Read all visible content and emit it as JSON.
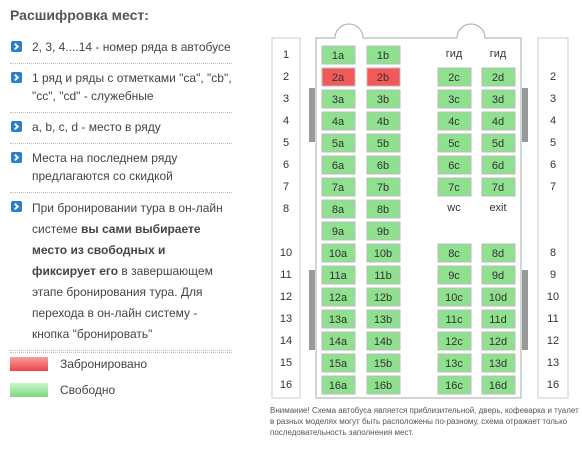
{
  "title": "Расшифровка мест:",
  "info_items": [
    [
      {
        "text": "2, 3, 4....14 - номер ряда в автобусе"
      }
    ],
    [
      {
        "text": "1 ряд и ряды с отметками \"са\", \"cb\", \"cc\", \"cd\" - служебные"
      }
    ],
    [
      {
        "text": "a, b, c, d - место в ряду"
      }
    ],
    [
      {
        "text": "Места на последнем ряду предлагаются со скидкой"
      }
    ],
    [
      {
        "text": "При бронировании тура в он-лайн системе "
      },
      {
        "text": "вы сами выбираете место из свободных и фиксирует его",
        "bold": true
      },
      {
        "text": " в завершающем этапе бронирования тура. Для перехода в он-лайн систему - кнопка \"бронировать\""
      }
    ]
  ],
  "legend": [
    {
      "status": "booked",
      "label": "Забронировано"
    },
    {
      "status": "free",
      "label": "Свободно"
    }
  ],
  "rows": [
    {
      "left": "1",
      "right": null,
      "cells": [
        {
          "label": "1a",
          "status": "free"
        },
        {
          "label": "1b",
          "status": "free"
        },
        {
          "label": "гид"
        },
        {
          "label": "гид"
        }
      ]
    },
    {
      "left": "2",
      "right": "2",
      "cells": [
        {
          "label": "2a",
          "status": "booked"
        },
        {
          "label": "2b",
          "status": "booked"
        },
        {
          "label": "2c",
          "status": "free"
        },
        {
          "label": "2d",
          "status": "free"
        }
      ]
    },
    {
      "left": "3",
      "right": "3",
      "cells": [
        {
          "label": "3a",
          "status": "free"
        },
        {
          "label": "3b",
          "status": "free"
        },
        {
          "label": "3c",
          "status": "free"
        },
        {
          "label": "3d",
          "status": "free"
        }
      ]
    },
    {
      "left": "4",
      "right": "4",
      "cells": [
        {
          "label": "4a",
          "status": "free"
        },
        {
          "label": "4b",
          "status": "free"
        },
        {
          "label": "4c",
          "status": "free"
        },
        {
          "label": "4d",
          "status": "free"
        }
      ]
    },
    {
      "left": "5",
      "right": "5",
      "cells": [
        {
          "label": "5a",
          "status": "free"
        },
        {
          "label": "5b",
          "status": "free"
        },
        {
          "label": "5c",
          "status": "free"
        },
        {
          "label": "5d",
          "status": "free"
        }
      ]
    },
    {
      "left": "6",
      "right": "6",
      "cells": [
        {
          "label": "6a",
          "status": "free"
        },
        {
          "label": "6b",
          "status": "free"
        },
        {
          "label": "6c",
          "status": "free"
        },
        {
          "label": "6d",
          "status": "free"
        }
      ]
    },
    {
      "left": "7",
      "right": "7",
      "cells": [
        {
          "label": "7a",
          "status": "free"
        },
        {
          "label": "7b",
          "status": "free"
        },
        {
          "label": "7c",
          "status": "free"
        },
        {
          "label": "7d",
          "status": "free"
        }
      ]
    },
    {
      "left": "8",
      "right": null,
      "cells": [
        {
          "label": "8a",
          "status": "free"
        },
        {
          "label": "8b",
          "status": "free"
        },
        {
          "label": "wc"
        },
        {
          "label": "exit"
        }
      ]
    },
    {
      "left": null,
      "right": null,
      "cells": [
        {
          "label": "9a",
          "status": "free"
        },
        {
          "label": "9b",
          "status": "free"
        },
        null,
        null
      ]
    },
    {
      "left": "10",
      "right": "8",
      "cells": [
        {
          "label": "10a",
          "status": "free"
        },
        {
          "label": "10b",
          "status": "free"
        },
        {
          "label": "8c",
          "status": "free"
        },
        {
          "label": "8d",
          "status": "free"
        }
      ]
    },
    {
      "left": "11",
      "right": "9",
      "cells": [
        {
          "label": "11a",
          "status": "free"
        },
        {
          "label": "11b",
          "status": "free"
        },
        {
          "label": "9c",
          "status": "free"
        },
        {
          "label": "9d",
          "status": "free"
        }
      ]
    },
    {
      "left": "12",
      "right": "10",
      "cells": [
        {
          "label": "12a",
          "status": "free"
        },
        {
          "label": "12b",
          "status": "free"
        },
        {
          "label": "10c",
          "status": "free"
        },
        {
          "label": "10d",
          "status": "free"
        }
      ]
    },
    {
      "left": "13",
      "right": "11",
      "cells": [
        {
          "label": "13a",
          "status": "free"
        },
        {
          "label": "13b",
          "status": "free"
        },
        {
          "label": "11c",
          "status": "free"
        },
        {
          "label": "11d",
          "status": "free"
        }
      ]
    },
    {
      "left": "14",
      "right": "12",
      "cells": [
        {
          "label": "14a",
          "status": "free"
        },
        {
          "label": "14b",
          "status": "free"
        },
        {
          "label": "12c",
          "status": "free"
        },
        {
          "label": "12d",
          "status": "free"
        }
      ]
    },
    {
      "left": "15",
      "right": "13",
      "cells": [
        {
          "label": "15a",
          "status": "free"
        },
        {
          "label": "15b",
          "status": "free"
        },
        {
          "label": "13c",
          "status": "free"
        },
        {
          "label": "13d",
          "status": "free"
        }
      ]
    },
    {
      "left": "16",
      "right": "16",
      "cells": [
        {
          "label": "16a",
          "status": "free"
        },
        {
          "label": "16b",
          "status": "free"
        },
        {
          "label": "16c",
          "status": "free"
        },
        {
          "label": "16d",
          "status": "free"
        }
      ]
    }
  ],
  "note": "Внимание! Схема автобуса является приблизительной, дверь, кофеварка и туалет в разных моделях могут быть расположены по-разному, схема отражает только последовательность заполнения мест."
}
